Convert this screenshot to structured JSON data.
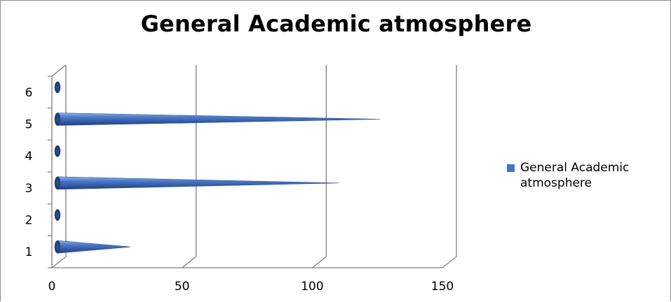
{
  "chart_data": {
    "type": "bar",
    "title": "General Academic atmosphere",
    "xlabel": "",
    "ylabel": "",
    "orientation": "horizontal",
    "style": "3d-cone",
    "categories": [
      "1",
      "2",
      "3",
      "4",
      "5",
      "6"
    ],
    "series": [
      {
        "name": "General Academic atmosphere",
        "values": [
          28,
          0,
          108,
          0,
          124,
          0
        ]
      }
    ],
    "xlim": [
      0,
      150
    ],
    "xticks": [
      "0",
      "50",
      "100",
      "150"
    ],
    "grid": true,
    "legend": "right",
    "colors": {
      "series": "#4472c4",
      "series_dark": "#1f3a6e",
      "grid": "#808080"
    }
  }
}
